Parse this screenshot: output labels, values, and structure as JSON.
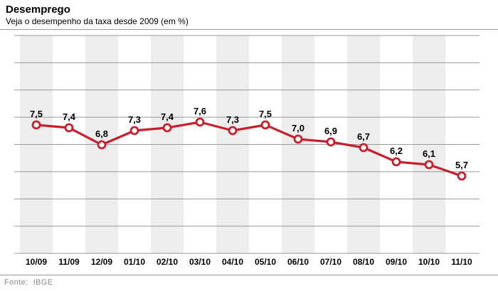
{
  "header": {
    "title": "Desemprego",
    "subtitle": "Veja o desempenho da taxa desde 2009 (em %)"
  },
  "footer": {
    "source_label": "Fonte:",
    "source_value": "IBGE"
  },
  "colors": {
    "line": "#c7202c",
    "point_fill": "#ffffff",
    "band": "#ededed",
    "grid": "#999999",
    "text": "#000000",
    "muted": "#8a8a8a"
  },
  "chart_data": {
    "type": "line",
    "title": "Desemprego",
    "subtitle": "Veja o desempenho da taxa desde 2009 (em %)",
    "xlabel": "",
    "ylabel": "",
    "categories": [
      "10/09",
      "11/09",
      "12/09",
      "01/10",
      "02/10",
      "03/10",
      "04/10",
      "05/10",
      "06/10",
      "07/10",
      "08/10",
      "09/10",
      "10/10",
      "11/10"
    ],
    "values": [
      7.5,
      7.4,
      6.8,
      7.3,
      7.4,
      7.6,
      7.3,
      7.5,
      7.0,
      6.9,
      6.7,
      6.2,
      6.1,
      5.7
    ],
    "value_labels": [
      "7,5",
      "7,4",
      "6,8",
      "7,3",
      "7,4",
      "7,6",
      "7,3",
      "7,5",
      "7,0",
      "6,9",
      "6,7",
      "6,2",
      "6,1",
      "5,7"
    ],
    "unit": "%",
    "ylim": [
      3.0,
      10.7
    ],
    "grid": "horizontal-only",
    "gridline_count": 9,
    "legend": "none",
    "column_bands": "alternating, shaded on even columns starting with first",
    "source": "IBGE"
  }
}
